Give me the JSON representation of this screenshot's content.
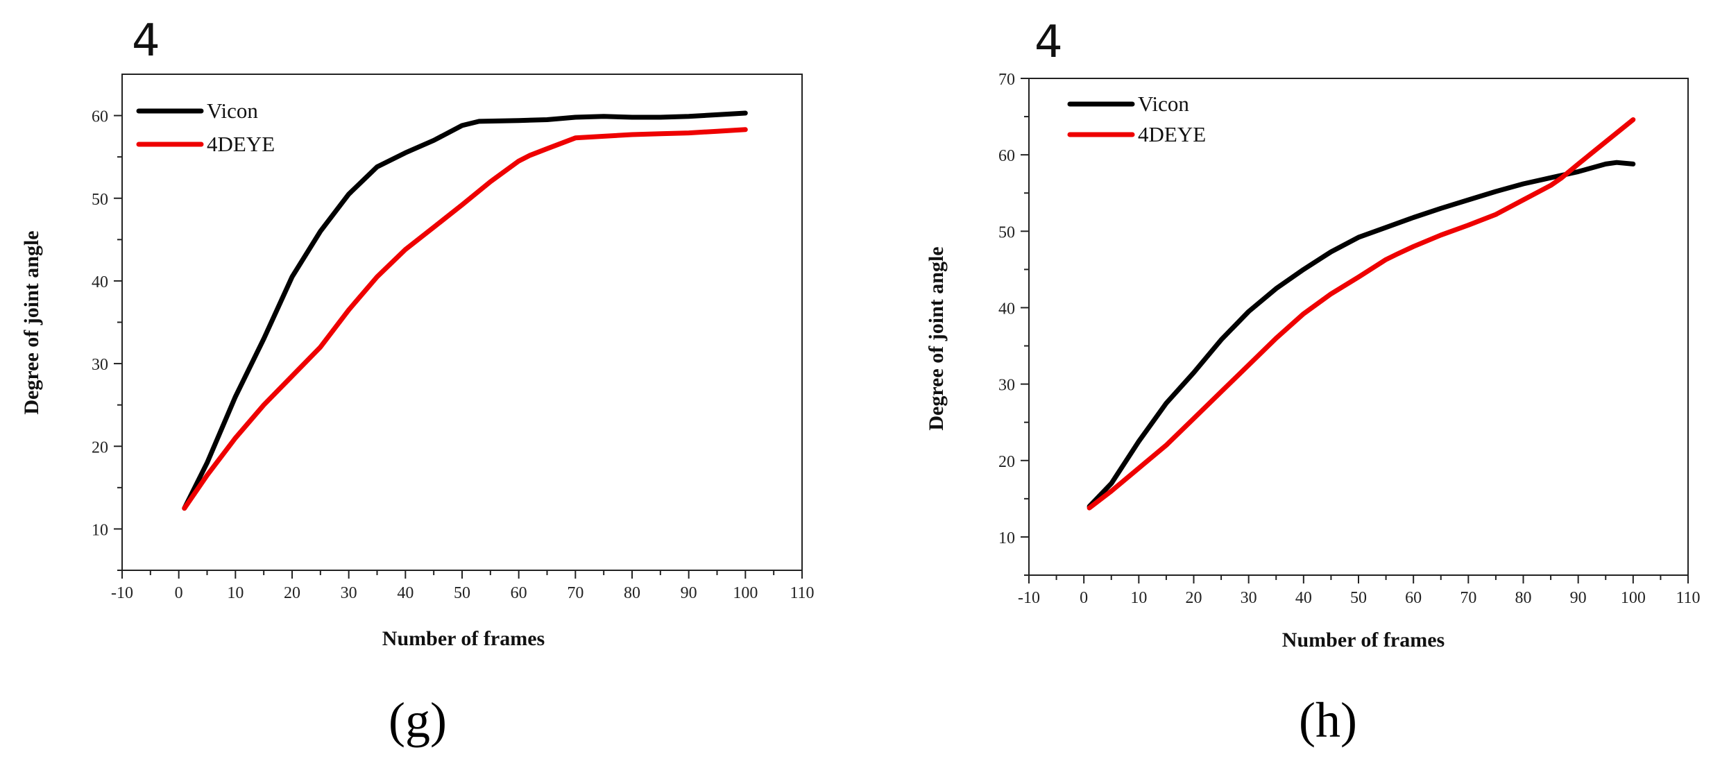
{
  "chart_data": [
    {
      "type": "line",
      "panel_label": "(g)",
      "corner_label": "4",
      "xlabel": "Number of frames",
      "ylabel": "Degree of joint angle",
      "xlim": [
        -10,
        110
      ],
      "ylim": [
        5,
        65
      ],
      "xticks": [
        -10,
        0,
        10,
        20,
        30,
        40,
        50,
        60,
        70,
        80,
        90,
        100,
        110
      ],
      "yticks": [
        10,
        20,
        30,
        40,
        50,
        60
      ],
      "legend_position": "top-left",
      "series": [
        {
          "name": "Vicon",
          "color": "#000000",
          "x": [
            1,
            5,
            10,
            15,
            20,
            25,
            30,
            35,
            40,
            45,
            50,
            53,
            60,
            65,
            70,
            75,
            80,
            85,
            90,
            95,
            100
          ],
          "y": [
            12.5,
            18,
            26,
            33,
            40.5,
            46,
            50.5,
            53.8,
            55.5,
            57,
            58.8,
            59.3,
            59.4,
            59.5,
            59.8,
            59.9,
            59.8,
            59.8,
            59.9,
            60.1,
            60.3
          ]
        },
        {
          "name": "4DEYE",
          "color": "#ee0000",
          "x": [
            1,
            5,
            10,
            15,
            20,
            25,
            30,
            35,
            40,
            45,
            50,
            55,
            60,
            62,
            65,
            70,
            75,
            80,
            85,
            90,
            95,
            100
          ],
          "y": [
            12.5,
            16.5,
            21,
            25,
            28.5,
            32,
            36.5,
            40.5,
            43.8,
            46.5,
            49.2,
            52,
            54.5,
            55.2,
            56,
            57.3,
            57.5,
            57.7,
            57.8,
            57.9,
            58.1,
            58.3
          ]
        }
      ]
    },
    {
      "type": "line",
      "panel_label": "(h)",
      "corner_label": "4",
      "xlabel": "Number of frames",
      "ylabel": "Degree of joint angle",
      "xlim": [
        -10,
        110
      ],
      "ylim": [
        5,
        70
      ],
      "xticks": [
        -10,
        0,
        10,
        20,
        30,
        40,
        50,
        60,
        70,
        80,
        90,
        100,
        110
      ],
      "yticks": [
        10,
        20,
        30,
        40,
        50,
        60,
        70
      ],
      "legend_position": "top-left",
      "series": [
        {
          "name": "Vicon",
          "color": "#000000",
          "x": [
            1,
            5,
            10,
            15,
            20,
            25,
            30,
            35,
            40,
            45,
            50,
            55,
            60,
            65,
            70,
            75,
            80,
            85,
            90,
            95,
            97,
            100
          ],
          "y": [
            14,
            17,
            22.5,
            27.5,
            31.5,
            35.8,
            39.5,
            42.5,
            45,
            47.3,
            49.2,
            50.5,
            51.8,
            53,
            54.1,
            55.2,
            56.2,
            57,
            57.8,
            58.8,
            59,
            58.8
          ]
        },
        {
          "name": "4DEYE",
          "color": "#ee0000",
          "x": [
            1,
            5,
            10,
            15,
            20,
            25,
            30,
            35,
            40,
            45,
            50,
            55,
            57,
            60,
            65,
            70,
            75,
            80,
            85,
            87,
            90,
            95,
            100
          ],
          "y": [
            13.8,
            16,
            19,
            22,
            25.5,
            29,
            32.5,
            36,
            39.2,
            41.8,
            44,
            46.3,
            47,
            48,
            49.5,
            50.8,
            52.2,
            54.1,
            56,
            57,
            58.8,
            61.7,
            64.6
          ]
        }
      ]
    }
  ]
}
